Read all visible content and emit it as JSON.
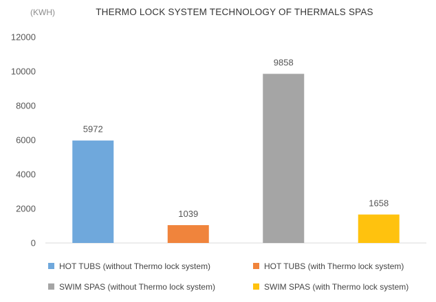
{
  "chart_data": {
    "type": "bar",
    "title": "THERMO LOCK SYSTEM TECHNOLOGY OF THERMALS SPAS",
    "unit_label": "(KWH)",
    "xlabel": "",
    "ylabel": "",
    "ylim": [
      0,
      12000
    ],
    "yticks": [
      0,
      2000,
      4000,
      6000,
      8000,
      10000,
      12000
    ],
    "grid": false,
    "legend_position": "bottom",
    "series": [
      {
        "name": "HOT TUBS (without Thermo lock system)",
        "value": 5972,
        "color": "#6fa8dc"
      },
      {
        "name": "HOT TUBS (with Thermo lock system)",
        "value": 1039,
        "color": "#f0843c"
      },
      {
        "name": "SWIM SPAS (without Thermo lock system)",
        "value": 9858,
        "color": "#a5a5a5"
      },
      {
        "name": "SWIM SPAS (with Thermo lock system)",
        "value": 1658,
        "color": "#ffc20e"
      }
    ],
    "colors": {
      "axis": "#d9d9d9",
      "text": "#555555"
    }
  }
}
